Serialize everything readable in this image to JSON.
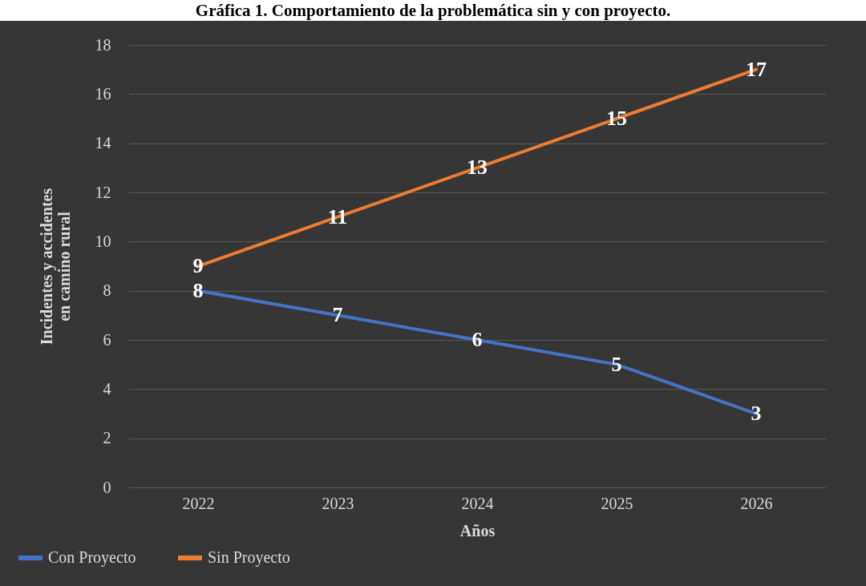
{
  "chart_data": {
    "type": "line",
    "title": "Gráfica 1. Comportamiento de la problemática sin y con proyecto.",
    "xlabel": "Años",
    "ylabel": "Incidentes y accidentes en camino rural",
    "categories": [
      "2022",
      "2023",
      "2024",
      "2025",
      "2026"
    ],
    "series": [
      {
        "name": "Con Proyecto",
        "color": "#4472c4",
        "values": [
          8,
          7,
          6,
          5,
          3
        ]
      },
      {
        "name": "Sin Proyecto",
        "color": "#ed7d31",
        "values": [
          9,
          11,
          13,
          15,
          17
        ]
      }
    ],
    "ylim": [
      0,
      18
    ],
    "yticks": [
      0,
      2,
      4,
      6,
      8,
      10,
      12,
      14,
      16,
      18
    ],
    "grid": "y",
    "legend": "bottom left",
    "data_labels": true,
    "marker": "none",
    "line_style": "solid"
  }
}
